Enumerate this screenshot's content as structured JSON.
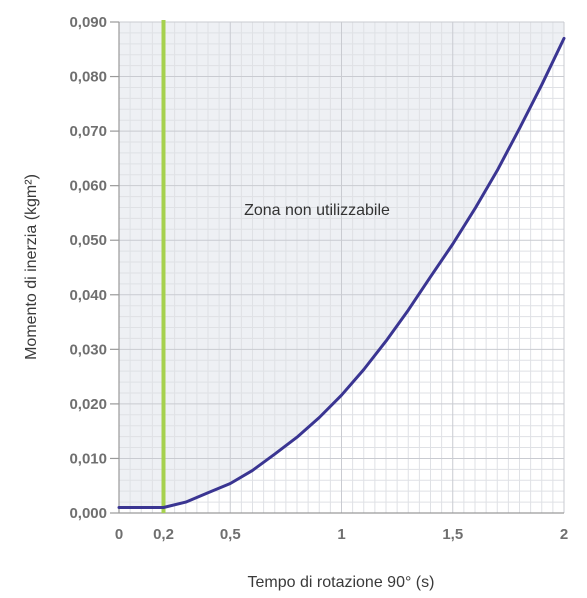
{
  "chart_data": {
    "type": "line",
    "xlabel": "Tempo di rotazione 90° (s)",
    "ylabel": "Momento di inerzia (kgm²)",
    "annotation": "Zona non utilizzabile",
    "xlim": [
      0,
      2
    ],
    "ylim": [
      0,
      0.09
    ],
    "x_ticks": [
      0,
      0.2,
      0.5,
      1,
      1.5,
      2
    ],
    "x_tick_labels": [
      "0",
      "0,2",
      "0,5",
      "1",
      "1,5",
      "2"
    ],
    "y_ticks": [
      0,
      0.01,
      0.02,
      0.03,
      0.04,
      0.05,
      0.06,
      0.07,
      0.08,
      0.09
    ],
    "y_tick_labels": [
      "0,000",
      "0,010",
      "0,020",
      "0,030",
      "0,040",
      "0,050",
      "0,060",
      "0,070",
      "0,080",
      "0,090"
    ],
    "grid": true,
    "series": [
      {
        "x": [
          0,
          0.1,
          0.2,
          0.3,
          0.4,
          0.5,
          0.6,
          0.7,
          0.8,
          0.9,
          1.0,
          1.1,
          1.2,
          1.3,
          1.4,
          1.5,
          1.6,
          1.7,
          1.8,
          1.9,
          2.0
        ],
        "y": [
          0.001,
          0.001,
          0.001,
          0.002,
          0.0037,
          0.0054,
          0.0078,
          0.0108,
          0.0139,
          0.0175,
          0.0216,
          0.0263,
          0.0315,
          0.0372,
          0.0433,
          0.0493,
          0.0558,
          0.0628,
          0.0705,
          0.0785,
          0.087
        ],
        "color": "#3a3592"
      }
    ],
    "vertical_line": {
      "x": 0.2,
      "color": "#a6d14e"
    },
    "colors": {
      "shade": "#eef0f4",
      "grid_major": "#c9cbd1",
      "grid_minor": "#dfe1e5",
      "axis": "#9a9a9a"
    }
  }
}
